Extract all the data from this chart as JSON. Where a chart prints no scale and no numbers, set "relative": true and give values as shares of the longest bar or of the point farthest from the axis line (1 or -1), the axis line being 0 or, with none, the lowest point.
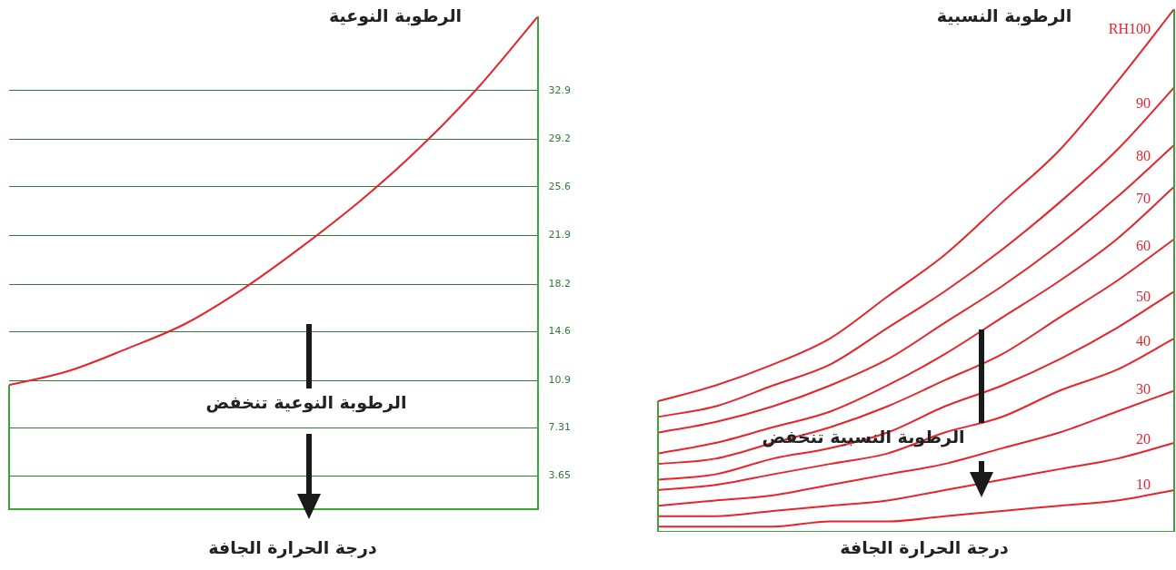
{
  "chart_data": [
    {
      "type": "line",
      "title": "الرطوبة النوعية",
      "xlabel": "درجة الحرارة الجافة",
      "categories": [
        null,
        null,
        null,
        null,
        null,
        null,
        null,
        null,
        null,
        null
      ],
      "series": [
        {
          "color": "#e8232a",
          "values": [
            10.55,
            11.6,
            13.3,
            15.2,
            17.9,
            21.1,
            24.6,
            28.6,
            33.2,
            38.5
          ]
        }
      ],
      "ylim": [
        1.1,
        38.5
      ],
      "yticks": [
        3.65,
        7.31,
        10.9,
        14.6,
        18.2,
        21.9,
        25.6,
        29.2,
        32.9
      ],
      "grid": "y",
      "marker": "none",
      "tick_labels": "y",
      "legend": false,
      "annotations": [
        "الرطوبة النوعية تنخفض"
      ]
    },
    {
      "type": "line",
      "title": "الرطوبة النسبية",
      "xlabel": "درجة الحرارة الجافة",
      "categories": [
        null,
        null,
        null,
        null,
        null,
        null,
        null,
        null,
        null,
        null
      ],
      "relative": true,
      "series": [
        {
          "name": "RH100",
          "color": "#e8232a",
          "values": [
            0.25,
            0.28,
            0.32,
            0.37,
            0.45,
            0.53,
            0.63,
            0.73,
            0.86,
            1
          ]
        },
        {
          "name": "90",
          "color": "#e8232a",
          "values": [
            0.22,
            0.24,
            0.28,
            0.32,
            0.39,
            0.46,
            0.54,
            0.63,
            0.73,
            0.85
          ]
        },
        {
          "name": "80",
          "color": "#e8232a",
          "values": [
            0.19,
            0.21,
            0.24,
            0.28,
            0.33,
            0.4,
            0.47,
            0.55,
            0.64,
            0.74
          ]
        },
        {
          "name": "70",
          "color": "#e8232a",
          "values": [
            0.15,
            0.17,
            0.2,
            0.23,
            0.28,
            0.34,
            0.41,
            0.48,
            0.56,
            0.66
          ]
        },
        {
          "name": "60",
          "color": "#e8232a",
          "values": [
            0.13,
            0.14,
            0.17,
            0.2,
            0.24,
            0.29,
            0.34,
            0.41,
            0.48,
            0.56
          ]
        },
        {
          "name": "50",
          "color": "#e8232a",
          "values": [
            0.1,
            0.11,
            0.14,
            0.16,
            0.19,
            0.24,
            0.28,
            0.33,
            0.39,
            0.46
          ]
        },
        {
          "name": "40",
          "color": "#e8232a",
          "values": [
            0.08,
            0.09,
            0.11,
            0.13,
            0.15,
            0.19,
            0.22,
            0.27,
            0.31,
            0.37
          ]
        },
        {
          "name": "30",
          "color": "#e8232a",
          "values": [
            0.05,
            0.06,
            0.07,
            0.09,
            0.11,
            0.13,
            0.16,
            0.19,
            0.23,
            0.27
          ]
        },
        {
          "name": "20",
          "color": "#e8232a",
          "values": [
            0.03,
            0.03,
            0.04,
            0.05,
            0.06,
            0.08,
            0.1,
            0.12,
            0.14,
            0.17
          ]
        },
        {
          "name": "10",
          "color": "#e8232a",
          "values": [
            0.01,
            0.01,
            0.01,
            0.02,
            0.02,
            0.03,
            0.04,
            0.05,
            0.06,
            0.08
          ]
        }
      ],
      "marker": "none",
      "tick_labels": false,
      "legend": false,
      "annotations": [
        "الرطوبة النسبية تنخفض"
      ]
    }
  ]
}
